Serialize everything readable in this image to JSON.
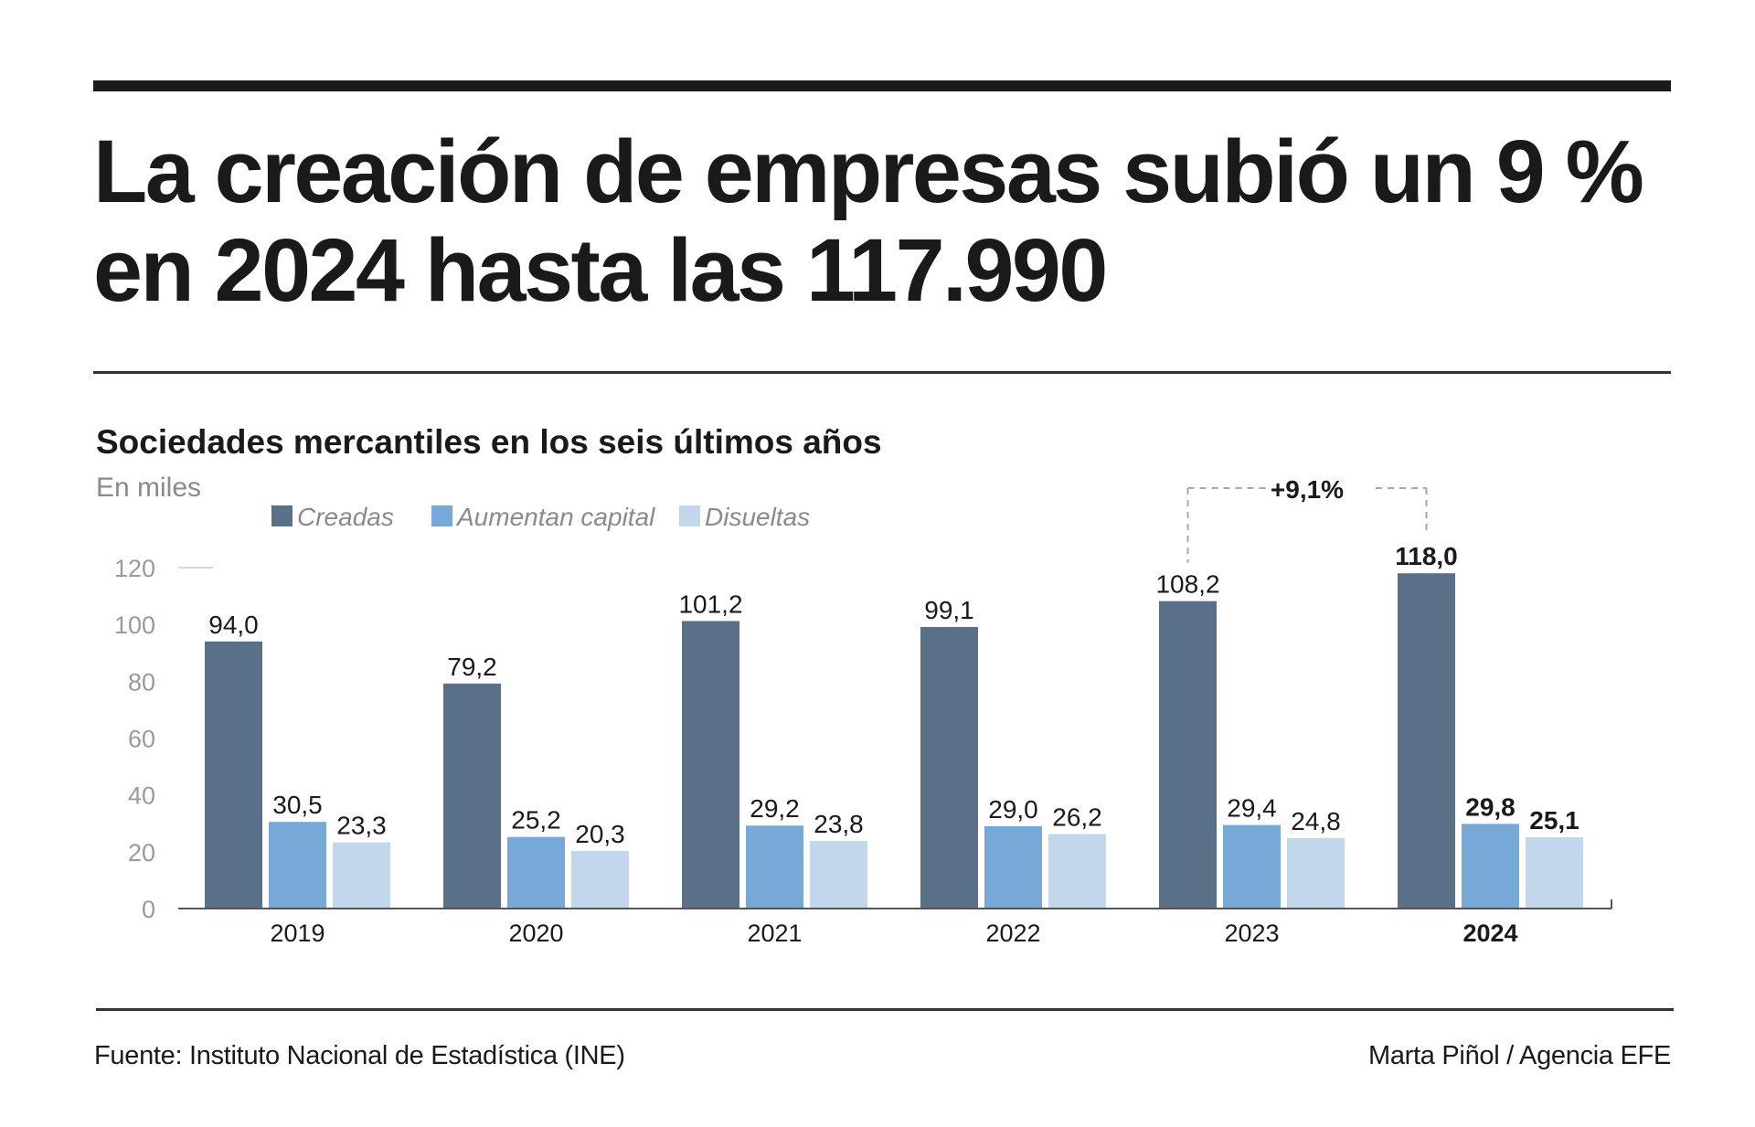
{
  "headline": {
    "line1": "La creación de empresas subió un 9 %",
    "line2": "en 2024 hasta las 117.990"
  },
  "chart_data": {
    "type": "bar",
    "title": "Sociedades mercantiles en los seis últimos años",
    "unit_label": "En miles",
    "categories": [
      "2019",
      "2020",
      "2021",
      "2022",
      "2023",
      "2024"
    ],
    "highlight_category": "2024",
    "series": [
      {
        "name": "Creadas",
        "color": "#5a7089",
        "values": [
          94.0,
          79.2,
          101.2,
          99.1,
          108.2,
          118.0
        ],
        "labels": [
          "94,0",
          "79,2",
          "101,2",
          "99,1",
          "108,2",
          "118,0"
        ]
      },
      {
        "name": "Aumentan capital",
        "color": "#77a9d8",
        "values": [
          30.5,
          25.2,
          29.2,
          29.0,
          29.4,
          29.8
        ],
        "labels": [
          "30,5",
          "25,2",
          "29,2",
          "29,0",
          "29,4",
          "29,8"
        ]
      },
      {
        "name": "Disueltas",
        "color": "#c3d7ec",
        "values": [
          23.3,
          20.3,
          23.8,
          26.2,
          24.8,
          25.1
        ],
        "labels": [
          "23,3",
          "20,3",
          "23,8",
          "26,2",
          "24,8",
          "25,1"
        ]
      }
    ],
    "ylim": [
      0,
      120
    ],
    "yticks": [
      "0",
      "20",
      "40",
      "60",
      "80",
      "100",
      "120"
    ],
    "legend_placement": "top-left",
    "grid": false,
    "annotation": {
      "text": "+9,1%",
      "from": "2023",
      "to": "2024",
      "series": "Creadas"
    }
  },
  "footer": {
    "source": "Fuente: Instituto Nacional de Estadística (INE)",
    "credit": "Marta Piñol / Agencia EFE"
  }
}
